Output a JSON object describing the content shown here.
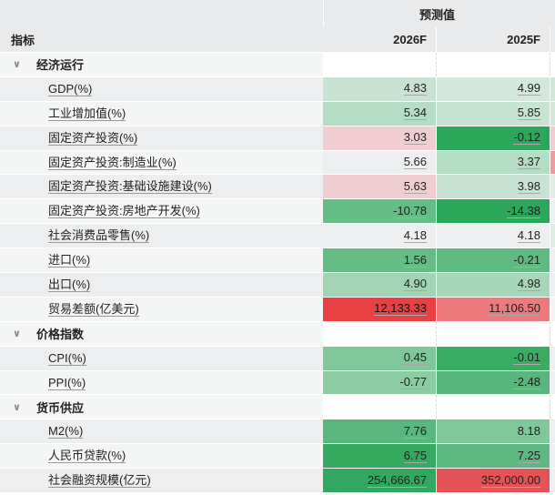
{
  "header": {
    "group": "预测值",
    "label_col": "指标",
    "years": [
      "2026F",
      "2025F"
    ]
  },
  "groups": [
    {
      "name": "经济运行",
      "rows": [
        {
          "label": "GDP(%)",
          "values": [
            "4.83",
            "4.99"
          ],
          "colors": [
            "#c8e3d3",
            "#d3e8dc",
            "#cfe6d8"
          ]
        },
        {
          "label": "工业增加值(%)",
          "values": [
            "5.34",
            "5.85"
          ],
          "colors": [
            "#b5dcc4",
            "#c7e3d2",
            "#d0e7d9"
          ]
        },
        {
          "label": "固定资产投资(%)",
          "values": [
            "3.03",
            "-0.12"
          ],
          "colors": [
            "#f0cdd0",
            "#2ba65a",
            "#f0cdd0"
          ]
        },
        {
          "label": "固定资产投资:制造业(%)",
          "values": [
            "5.66",
            "3.37"
          ],
          "colors": [
            "#eeeff1",
            "#b5dcc4",
            "#ef9a9e"
          ]
        },
        {
          "label": "固定资产投资:基础设施建设(%)",
          "values": [
            "5.63",
            "3.98"
          ],
          "colors": [
            "#f0cdd0",
            "#c8e3d3",
            "#e2ece6"
          ]
        },
        {
          "label": "固定资产投资:房地产开发(%)",
          "values": [
            "-10.78",
            "-14.38"
          ],
          "colors": [
            "#66bc85",
            "#2ba65a",
            "#eeeff1"
          ]
        },
        {
          "label": "社会消费品零售(%)",
          "values": [
            "4.18",
            "4.18"
          ],
          "colors": [
            "#eeeff1",
            "#eeeff1",
            "#dfeee5"
          ]
        },
        {
          "label": "进口(%)",
          "values": [
            "1.56",
            "-0.21"
          ],
          "colors": [
            "#66bc85",
            "#5fb981",
            "#eeeff1"
          ]
        },
        {
          "label": "出口(%)",
          "values": [
            "4.90",
            "4.98"
          ],
          "colors": [
            "#a3d3b5",
            "#a8d6b9",
            "#eeeff1"
          ]
        },
        {
          "label": "贸易差额(亿美元)",
          "values": [
            "12,133.33",
            "11,106.50"
          ],
          "colors": [
            "#e84144",
            "#ec7a7d",
            "#f3f4f4"
          ]
        }
      ]
    },
    {
      "name": "价格指数",
      "rows": [
        {
          "label": "CPI(%)",
          "values": [
            "0.45",
            "-0.01"
          ],
          "colors": [
            "#80c799",
            "#3aac62",
            "#eeeff1"
          ]
        },
        {
          "label": "PPI(%)",
          "values": [
            "-0.77",
            "-2.48"
          ],
          "colors": [
            "#8dcba3",
            "#57b67b",
            "#eeeff1"
          ]
        }
      ]
    },
    {
      "name": "货币供应",
      "rows": [
        {
          "label": "M2(%)",
          "values": [
            "7.76",
            "8.18"
          ],
          "colors": [
            "#59b77d",
            "#80c799",
            "#eeeff1"
          ]
        },
        {
          "label": "人民币贷款(%)",
          "values": [
            "6.75",
            "7.25"
          ],
          "colors": [
            "#35a960",
            "#5db980",
            "#eeeff1"
          ]
        },
        {
          "label": "社会融资规模(亿元)",
          "values": [
            "254,666.67",
            "352,000.00"
          ],
          "colors": [
            "#32a85e",
            "#e45356",
            "#eeeff1"
          ]
        }
      ]
    }
  ]
}
